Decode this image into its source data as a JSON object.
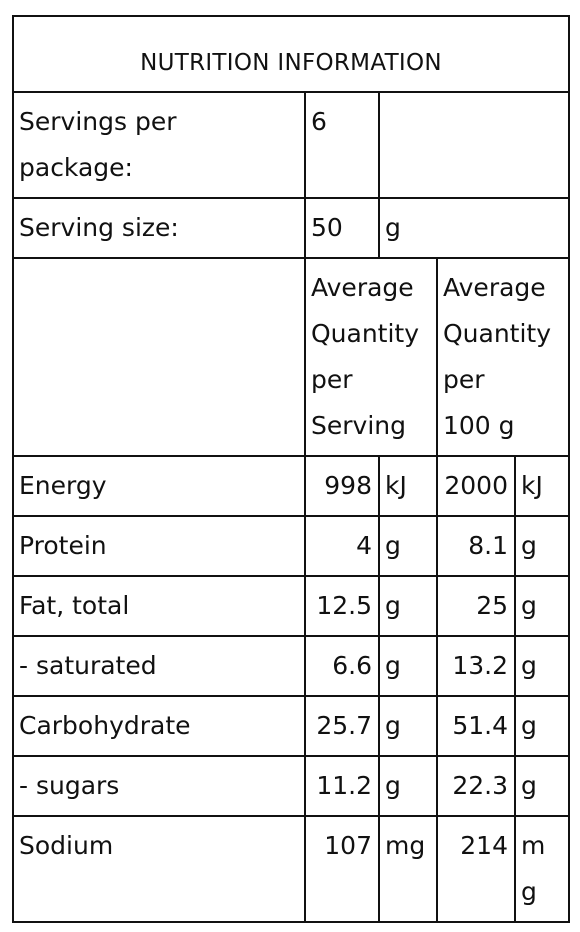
{
  "title": "NUTRITION INFORMATION",
  "servings": {
    "label_line1": "Servings per",
    "label_line2": "package:",
    "value": "6"
  },
  "serving_size": {
    "label": "Serving size:",
    "value": "50",
    "unit": "g"
  },
  "header": {
    "per_serving": [
      "Average",
      "Quantity",
      "per",
      "Serving"
    ],
    "per_100g": [
      "Average",
      "Quantity",
      "per",
      "100 g"
    ]
  },
  "rows": [
    {
      "label": "Energy",
      "serving": "998",
      "serving_unit": "kJ",
      "per100": "2000",
      "per100_unit": "kJ"
    },
    {
      "label": "Protein",
      "serving": "4",
      "serving_unit": "g",
      "per100": "8.1",
      "per100_unit": "g"
    },
    {
      "label": "Fat, total",
      "serving": "12.5",
      "serving_unit": "g",
      "per100": "25",
      "per100_unit": "g"
    },
    {
      "label": "- saturated",
      "serving": "6.6",
      "serving_unit": "g",
      "per100": "13.2",
      "per100_unit": "g"
    },
    {
      "label": "Carbohydrate",
      "serving": "25.7",
      "serving_unit": "g",
      "per100": "51.4",
      "per100_unit": "g"
    },
    {
      "label": "- sugars",
      "serving": "11.2",
      "serving_unit": "g",
      "per100": "22.3",
      "per100_unit": "g"
    },
    {
      "label": "Sodium",
      "serving": "107",
      "serving_unit": "mg",
      "per100": "214",
      "per100_unit_line1": "m",
      "per100_unit_line2": "g"
    }
  ]
}
